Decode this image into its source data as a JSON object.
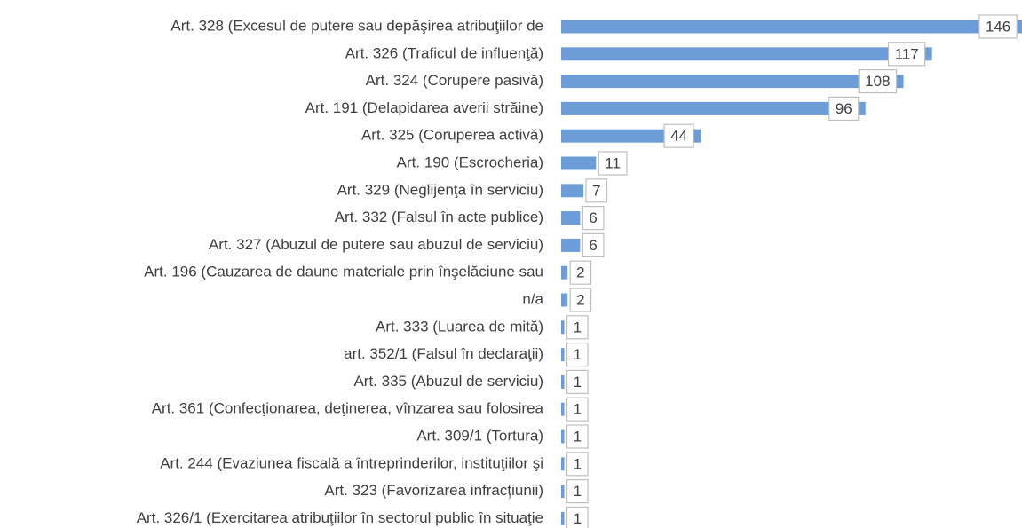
{
  "chart_data": {
    "type": "bar",
    "orientation": "horizontal",
    "color": "#6c9dd9",
    "categories": [
      "Art. 328 (Excesul de putere sau depăşirea atribuţiilor de",
      "Art. 326 (Traficul de influenţă)",
      "Art. 324 (Corupere pasivă)",
      "Art. 191 (Delapidarea averii străine)",
      "Art. 325 (Coruperea activă)",
      "Art. 190 (Escrocheria)",
      "Art. 329 (Neglijenţa în serviciu)",
      "Art. 332 (Falsul în acte publice)",
      "Art. 327 (Abuzul de putere sau abuzul de serviciu)",
      "Art. 196 (Cauzarea de daune materiale prin înşelăciune sau",
      "n/a",
      "Art. 333 (Luarea de mită)",
      "art. 352/1 (Falsul în declaraţii)",
      "Art. 335 (Abuzul de serviciu)",
      "Art. 361 (Confecţionarea, deţinerea, vînzarea sau folosirea",
      "Art. 309/1 (Tortura)",
      "Art. 244 (Evaziunea fiscală a întreprinderilor, instituţiilor şi",
      "Art. 323 (Favorizarea infracţiunii)",
      "Art. 326/1 (Exercitarea atribuţiilor în sectorul public în situaţie"
    ],
    "values": [
      146,
      117,
      108,
      96,
      44,
      11,
      7,
      6,
      6,
      2,
      2,
      1,
      1,
      1,
      1,
      1,
      1,
      1,
      1
    ]
  }
}
